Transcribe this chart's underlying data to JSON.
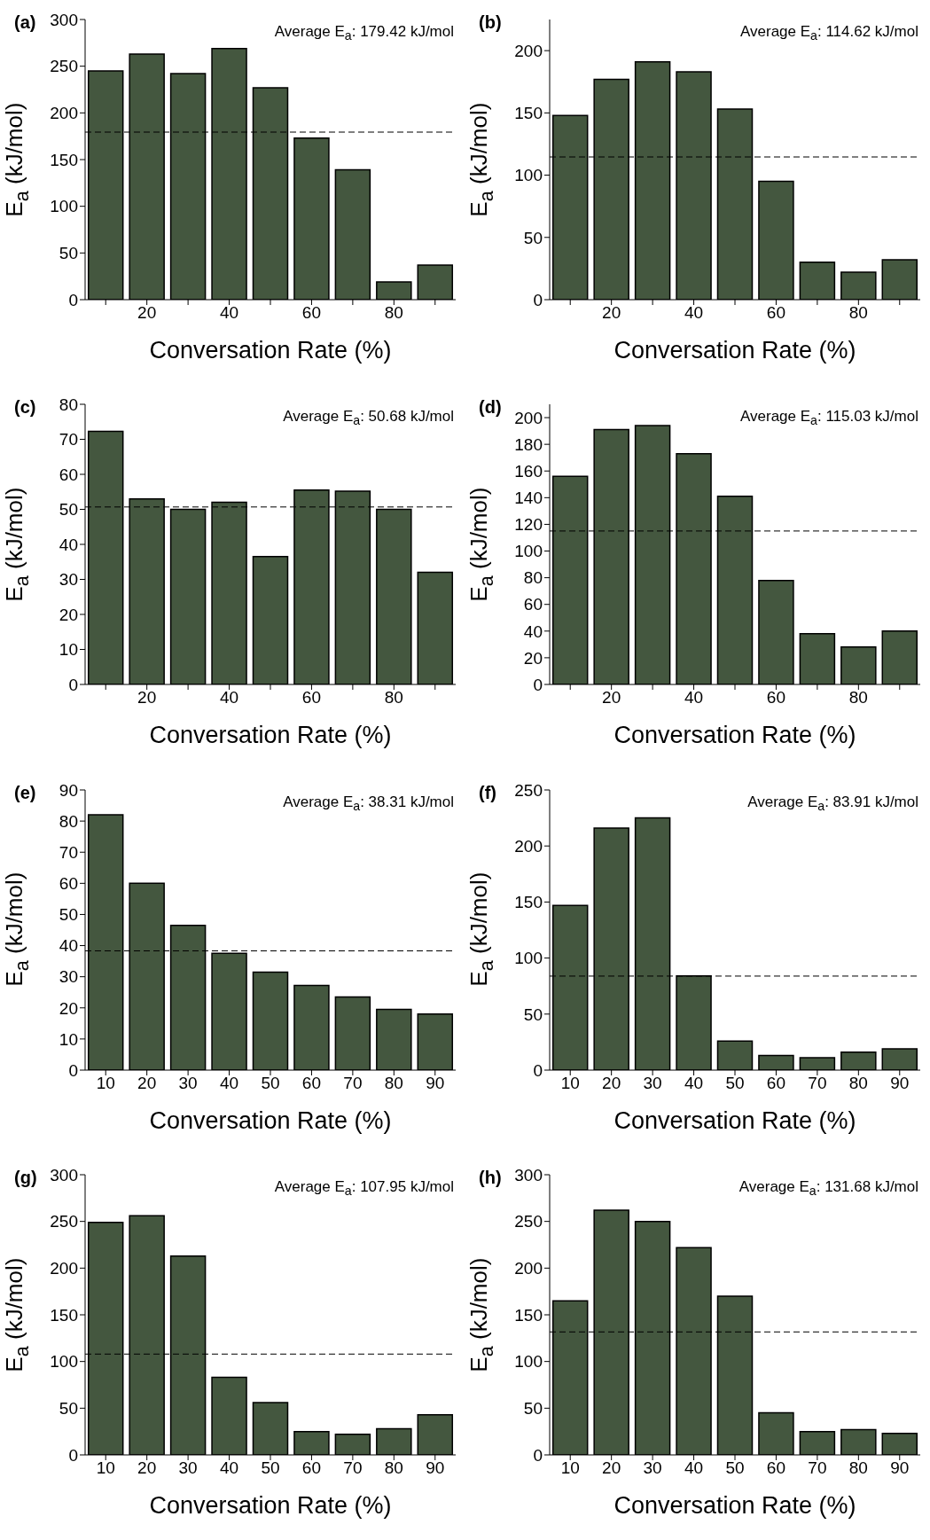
{
  "chart_data": [
    {
      "type": "bar",
      "title": "(a)",
      "xlabel": "Conversation Rate (%)",
      "ylabel": "E$_{a}$ (kJ/mol)",
      "categories": [
        null,
        "20",
        null,
        "40",
        null,
        "60",
        null,
        "80",
        null
      ],
      "values": [
        245,
        263,
        242,
        269,
        227,
        173,
        139,
        19,
        37
      ],
      "color": "#44573f",
      "ylim": [
        0,
        300
      ],
      "yticks": [
        0,
        50,
        100,
        150,
        200,
        250,
        300
      ],
      "ref_lines": [
        {
          "axis": "y",
          "value": 179.42,
          "label": "Average E$_{a}$: 179.42 kJ/mol",
          "line_style": "dashed"
        }
      ]
    },
    {
      "type": "bar",
      "title": "(b)",
      "xlabel": "Conversation Rate (%)",
      "ylabel": "E$_{a}$ (kJ/mol)",
      "categories": [
        null,
        "20",
        null,
        "40",
        null,
        "60",
        null,
        "80",
        null
      ],
      "values": [
        148,
        177,
        191,
        183,
        153,
        95,
        30,
        22,
        32
      ],
      "color": "#44573f",
      "ylim": [
        0,
        225
      ],
      "yticks": [
        0,
        50,
        100,
        150,
        200
      ],
      "ref_lines": [
        {
          "axis": "y",
          "value": 114.62,
          "label": "Average E$_{a}$: 114.62 kJ/mol",
          "line_style": "dashed"
        }
      ]
    },
    {
      "type": "bar",
      "title": "(c)",
      "xlabel": "Conversation Rate (%)",
      "ylabel": "E$_{a}$ (kJ/mol)",
      "categories": [
        null,
        "20",
        null,
        "40",
        null,
        "60",
        null,
        "80",
        null
      ],
      "values": [
        72.3,
        53,
        50,
        52,
        36.5,
        55.5,
        55.2,
        50,
        32
      ],
      "color": "#44573f",
      "ylim": [
        0,
        80
      ],
      "yticks": [
        0,
        10,
        20,
        30,
        40,
        50,
        60,
        70,
        80
      ],
      "ref_lines": [
        {
          "axis": "y",
          "value": 50.68,
          "label": "Average E$_{a}$: 50.68 kJ/mol",
          "line_style": "dashed"
        }
      ]
    },
    {
      "type": "bar",
      "title": "(d)",
      "xlabel": "Conversation Rate (%)",
      "ylabel": "E$_{a}$ (kJ/mol)",
      "categories": [
        null,
        "20",
        null,
        "40",
        null,
        "60",
        null,
        "80",
        null
      ],
      "values": [
        156,
        191,
        194,
        173,
        141,
        78,
        38,
        28,
        40
      ],
      "color": "#44573f",
      "ylim": [
        0,
        210
      ],
      "yticks": [
        0,
        20,
        40,
        60,
        80,
        100,
        120,
        140,
        160,
        180,
        200
      ],
      "ref_lines": [
        {
          "axis": "y",
          "value": 115.03,
          "label": "Average E$_{a}$: 115.03 kJ/mol",
          "line_style": "dashed"
        }
      ]
    },
    {
      "type": "bar",
      "title": "(e)",
      "xlabel": "Conversation Rate (%)",
      "ylabel": "E$_{a}$ (kJ/mol)",
      "categories": [
        "10",
        "20",
        "30",
        "40",
        "50",
        "60",
        "70",
        "80",
        "90"
      ],
      "values": [
        82,
        60,
        46.5,
        37.5,
        31.5,
        27.2,
        23.5,
        19.5,
        18
      ],
      "color": "#44573f",
      "ylim": [
        0,
        90
      ],
      "yticks": [
        0,
        10,
        20,
        30,
        40,
        50,
        60,
        70,
        80,
        90
      ],
      "ref_lines": [
        {
          "axis": "y",
          "value": 38.31,
          "label": "Average E$_{a}$: 38.31 kJ/mol",
          "line_style": "dashed"
        }
      ]
    },
    {
      "type": "bar",
      "title": "(f)",
      "xlabel": "Conversation Rate (%)",
      "ylabel": "E$_{a}$ (kJ/mol)",
      "categories": [
        "10",
        "20",
        "30",
        "40",
        "50",
        "60",
        "70",
        "80",
        "90"
      ],
      "values": [
        147,
        216,
        225,
        84,
        26,
        13,
        11,
        16,
        19
      ],
      "color": "#44573f",
      "ylim": [
        0,
        250
      ],
      "yticks": [
        0,
        50,
        100,
        150,
        200,
        250
      ],
      "ref_lines": [
        {
          "axis": "y",
          "value": 83.91,
          "label": "Average E$_{a}$: 83.91 kJ/mol",
          "line_style": "dashed"
        }
      ]
    },
    {
      "type": "bar",
      "title": "(g)",
      "xlabel": "Conversation Rate (%)",
      "ylabel": "E$_{a}$ (kJ/mol)",
      "categories": [
        "10",
        "20",
        "30",
        "40",
        "50",
        "60",
        "70",
        "80",
        "90"
      ],
      "values": [
        249,
        256,
        213,
        83,
        56,
        25,
        22,
        28,
        43
      ],
      "color": "#44573f",
      "ylim": [
        0,
        300
      ],
      "yticks": [
        0,
        50,
        100,
        150,
        200,
        250,
        300
      ],
      "ref_lines": [
        {
          "axis": "y",
          "value": 107.95,
          "label": "Average E$_{a}$: 107.95 kJ/mol",
          "line_style": "dashed"
        }
      ]
    },
    {
      "type": "bar",
      "title": "(h)",
      "xlabel": "Conversation Rate (%)",
      "ylabel": "E$_{a}$ (kJ/mol)",
      "categories": [
        "10",
        "20",
        "30",
        "40",
        "50",
        "60",
        "70",
        "80",
        "90"
      ],
      "values": [
        165,
        262,
        250,
        222,
        170,
        45,
        25,
        27,
        23
      ],
      "color": "#44573f",
      "ylim": [
        0,
        300
      ],
      "yticks": [
        0,
        50,
        100,
        150,
        200,
        250,
        300
      ],
      "ref_lines": [
        {
          "axis": "y",
          "value": 131.68,
          "label": "Average E$_{a}$: 131.68 kJ/mol",
          "line_style": "dashed"
        }
      ]
    }
  ]
}
